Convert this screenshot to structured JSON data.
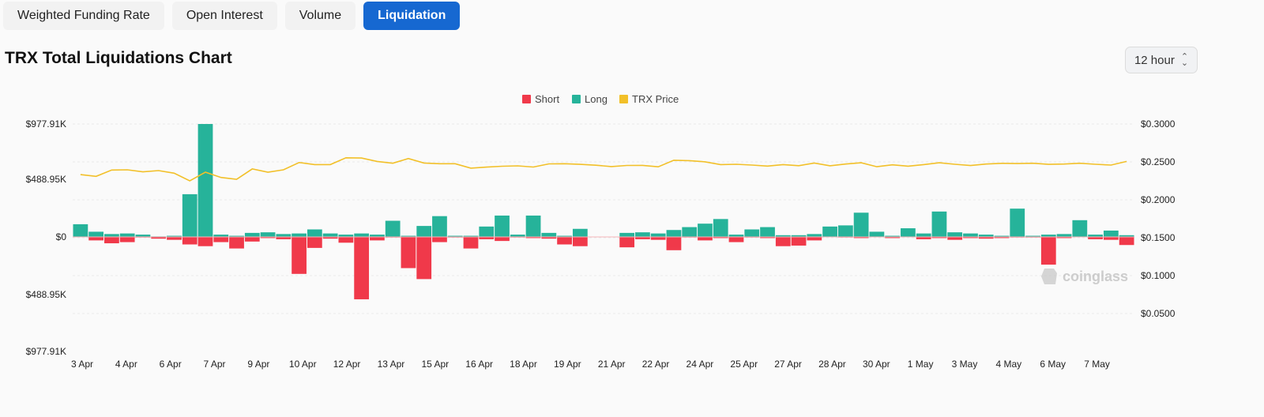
{
  "tabs": [
    {
      "label": "Weighted Funding Rate",
      "active": false
    },
    {
      "label": "Open Interest",
      "active": false
    },
    {
      "label": "Volume",
      "active": false
    },
    {
      "label": "Liquidation",
      "active": true
    }
  ],
  "chart_title": "TRX Total Liquidations Chart",
  "interval_select": {
    "value": "12 hour"
  },
  "watermark": "coinglass",
  "colors": {
    "short": "#f0394a",
    "long": "#26b39a",
    "price": "#f2c029",
    "accent": "#1668d1"
  },
  "chart_data": {
    "type": "bar",
    "legend": [
      {
        "name": "Short",
        "color": "#f0394a"
      },
      {
        "name": "Long",
        "color": "#26b39a"
      },
      {
        "name": "TRX Price",
        "color": "#f2c029"
      }
    ],
    "legend_position": "top-center",
    "grid": true,
    "x_tick_labels": [
      "3 Apr",
      "4 Apr",
      "6 Apr",
      "7 Apr",
      "9 Apr",
      "10 Apr",
      "12 Apr",
      "13 Apr",
      "15 Apr",
      "16 Apr",
      "18 Apr",
      "19 Apr",
      "21 Apr",
      "22 Apr",
      "24 Apr",
      "25 Apr",
      "27 Apr",
      "28 Apr",
      "30 Apr",
      "1 May",
      "3 May",
      "4 May",
      "6 May",
      "7 May"
    ],
    "y_left": {
      "ticks": [
        "$977.91K",
        "$488.95K",
        "$0",
        "$488.95K",
        "$977.91K"
      ],
      "range": [
        -977910,
        977910
      ]
    },
    "y_right": {
      "ticks": [
        "$0.3000",
        "$0.2500",
        "$0.2000",
        "$0.1500",
        "$0.1000",
        "$0.0500"
      ],
      "range": [
        0,
        0.3
      ]
    },
    "series": [
      {
        "name": "Long",
        "values": [
          110000,
          45000,
          25000,
          30000,
          20000,
          5000,
          10000,
          370000,
          977910,
          20000,
          10000,
          35000,
          40000,
          25000,
          30000,
          65000,
          30000,
          20000,
          30000,
          20000,
          140000,
          10000,
          95000,
          180000,
          10000,
          10000,
          90000,
          185000,
          20000,
          185000,
          35000,
          10000,
          70000,
          0,
          0,
          35000,
          40000,
          30000,
          60000,
          85000,
          115000,
          155000,
          20000,
          65000,
          85000,
          15000,
          15000,
          25000,
          90000,
          100000,
          210000,
          45000,
          10000,
          75000,
          30000,
          220000,
          40000,
          30000,
          20000,
          10000,
          245000,
          10000,
          20000,
          25000,
          145000,
          20000,
          55000,
          15000
        ]
      },
      {
        "name": "Short",
        "values": [
          0,
          30000,
          55000,
          45000,
          5000,
          15000,
          25000,
          65000,
          80000,
          45000,
          100000,
          40000,
          10000,
          20000,
          320000,
          95000,
          15000,
          50000,
          540000,
          30000,
          5000,
          270000,
          365000,
          45000,
          5000,
          100000,
          20000,
          35000,
          5000,
          10000,
          15000,
          65000,
          80000,
          0,
          0,
          90000,
          20000,
          25000,
          115000,
          5000,
          30000,
          10000,
          45000,
          5000,
          10000,
          80000,
          75000,
          30000,
          0,
          5000,
          10000,
          0,
          10000,
          0,
          20000,
          10000,
          25000,
          10000,
          15000,
          10000,
          5000,
          5000,
          240000,
          10000,
          0,
          20000,
          25000,
          70000
        ]
      },
      {
        "name": "TRX Price",
        "values": [
          0.2335,
          0.2312,
          0.2395,
          0.2398,
          0.2371,
          0.2388,
          0.2354,
          0.2253,
          0.2367,
          0.2298,
          0.2273,
          0.241,
          0.2367,
          0.2398,
          0.2494,
          0.2467,
          0.2467,
          0.2556,
          0.2553,
          0.2508,
          0.2484,
          0.2547,
          0.2488,
          0.2478,
          0.2478,
          0.242,
          0.2434,
          0.2445,
          0.245,
          0.2435,
          0.2476,
          0.2478,
          0.247,
          0.2458,
          0.2441,
          0.2455,
          0.2456,
          0.2438,
          0.2524,
          0.2519,
          0.2503,
          0.2467,
          0.2471,
          0.2461,
          0.2447,
          0.2467,
          0.2452,
          0.2488,
          0.2451,
          0.2474,
          0.2491,
          0.2439,
          0.2464,
          0.2446,
          0.2467,
          0.2491,
          0.2471,
          0.2454,
          0.2474,
          0.2483,
          0.248,
          0.2484,
          0.247,
          0.2474,
          0.2484,
          0.2471,
          0.2461,
          0.2508
        ]
      }
    ]
  }
}
